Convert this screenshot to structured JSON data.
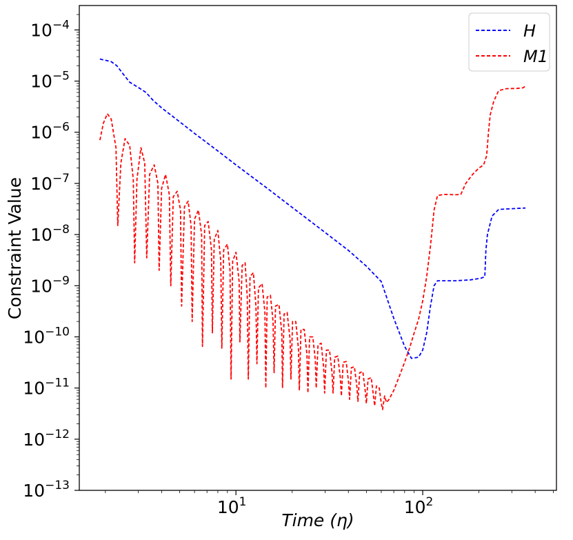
{
  "chart_data": {
    "type": "line",
    "title": "",
    "xlabel_parts": [
      "Time (",
      "η",
      ")"
    ],
    "ylabel": "Constraint Value",
    "xscale": "log",
    "yscale": "log",
    "xlim": [
      1.45,
      520
    ],
    "ylim": [
      1e-13,
      0.0003
    ],
    "x_ticks": [
      {
        "value": 10,
        "base": "10",
        "exp": "1"
      },
      {
        "value": 100,
        "base": "10",
        "exp": "2"
      }
    ],
    "y_ticks": [
      {
        "value": 1e-13,
        "base": "10",
        "exp": "−13"
      },
      {
        "value": 1e-12,
        "base": "10",
        "exp": "−12"
      },
      {
        "value": 1e-11,
        "base": "10",
        "exp": "−11"
      },
      {
        "value": 1e-10,
        "base": "10",
        "exp": "−10"
      },
      {
        "value": 1e-09,
        "base": "10",
        "exp": "−9"
      },
      {
        "value": 1e-08,
        "base": "10",
        "exp": "−8"
      },
      {
        "value": 1e-07,
        "base": "10",
        "exp": "−7"
      },
      {
        "value": 1e-06,
        "base": "10",
        "exp": "−6"
      },
      {
        "value": 1e-05,
        "base": "10",
        "exp": "−5"
      },
      {
        "value": 0.0001,
        "base": "10",
        "exp": "−4"
      }
    ],
    "legend_position": "top-right",
    "grid": false,
    "series": [
      {
        "name": "H",
        "color": "#0000ff",
        "linestyle": "dashed",
        "points": [
          [
            1.87,
            2.7e-05
          ],
          [
            2.0,
            2.55e-05
          ],
          [
            2.15,
            2.4e-05
          ],
          [
            2.3,
            2e-05
          ],
          [
            2.5,
            1.35e-05
          ],
          [
            2.7,
            9.5e-06
          ],
          [
            3.0,
            7.5e-06
          ],
          [
            3.3,
            6e-06
          ],
          [
            3.6,
            4.2e-06
          ],
          [
            4.0,
            3e-06
          ],
          [
            5.0,
            1.6e-06
          ],
          [
            6.0,
            9.5e-07
          ],
          [
            8.0,
            4.3e-07
          ],
          [
            10.0,
            2.3e-07
          ],
          [
            15.0,
            7.6e-08
          ],
          [
            20.0,
            3.4e-08
          ],
          [
            30.0,
            1.1e-08
          ],
          [
            40.0,
            4.9e-09
          ],
          [
            50.0,
            2.4e-09
          ],
          [
            60.0,
            1.2e-09
          ],
          [
            70.0,
            2.3e-10
          ],
          [
            80.0,
            6.5e-11
          ],
          [
            87.0,
            3.8e-11
          ],
          [
            95.0,
            4e-11
          ],
          [
            100.0,
            5.5e-11
          ],
          [
            105.0,
            1.2e-10
          ],
          [
            110.0,
            4e-10
          ],
          [
            115.0,
            1e-09
          ],
          [
            120.0,
            1.25e-09
          ],
          [
            150.0,
            1.25e-09
          ],
          [
            180.0,
            1.3e-09
          ],
          [
            205.0,
            1.4e-09
          ],
          [
            215.0,
            1.5e-09
          ],
          [
            218.0,
            5e-09
          ],
          [
            222.0,
            1e-08
          ],
          [
            235.0,
            2.3e-08
          ],
          [
            255.0,
            3.1e-08
          ],
          [
            300.0,
            3.2e-08
          ],
          [
            355.0,
            3.3e-08
          ]
        ]
      },
      {
        "name": "M1",
        "color": "#ff0000",
        "linestyle": "dashed",
        "points": [
          [
            1.87,
            7e-07
          ],
          [
            1.95,
            1.5e-06
          ],
          [
            2.05,
            2.3e-06
          ],
          [
            2.15,
            1.8e-06
          ],
          [
            2.28,
            5e-07
          ],
          [
            2.33,
            1.5e-08
          ],
          [
            2.42,
            2.5e-07
          ],
          [
            2.55,
            7.5e-07
          ],
          [
            2.7,
            5.5e-07
          ],
          [
            2.82,
            1.2e-07
          ],
          [
            2.87,
            2.8e-09
          ],
          [
            2.95,
            1.2e-07
          ],
          [
            3.1,
            5e-07
          ],
          [
            3.25,
            2.5e-07
          ],
          [
            3.33,
            3.5e-09
          ],
          [
            3.45,
            1.5e-07
          ],
          [
            3.65,
            2.3e-07
          ],
          [
            3.82,
            1e-07
          ],
          [
            3.88,
            2e-09
          ],
          [
            4.0,
            8e-08
          ],
          [
            4.2,
            1.5e-07
          ],
          [
            4.4,
            6e-08
          ],
          [
            4.48,
            1e-09
          ],
          [
            4.62,
            5.5e-08
          ],
          [
            4.85,
            7e-08
          ],
          [
            5.05,
            3e-08
          ],
          [
            5.12,
            4e-10
          ],
          [
            5.3,
            3.5e-08
          ],
          [
            5.55,
            4.5e-08
          ],
          [
            5.75,
            1.5e-08
          ],
          [
            5.83,
            2e-10
          ],
          [
            6.0,
            2e-08
          ],
          [
            6.3,
            3e-08
          ],
          [
            6.55,
            1e-08
          ],
          [
            6.62,
            6.5e-11
          ],
          [
            6.8,
            1.5e-08
          ],
          [
            7.1,
            1.8e-08
          ],
          [
            7.4,
            5e-09
          ],
          [
            7.48,
            1.2e-10
          ],
          [
            7.65,
            8e-09
          ],
          [
            8.0,
            1.2e-08
          ],
          [
            8.3,
            3e-09
          ],
          [
            8.4,
            6e-11
          ],
          [
            8.6,
            5e-09
          ],
          [
            9.0,
            6.5e-09
          ],
          [
            9.3,
            2e-09
          ],
          [
            9.42,
            1.5e-11
          ],
          [
            9.6,
            3e-09
          ],
          [
            10.0,
            4.5e-09
          ],
          [
            10.4,
            1.2e-09
          ],
          [
            10.5,
            8e-11
          ],
          [
            10.8,
            2.5e-09
          ],
          [
            11.2,
            2.8e-09
          ],
          [
            11.5,
            6e-10
          ],
          [
            11.65,
            1.5e-11
          ],
          [
            11.9,
            1.5e-09
          ],
          [
            12.4,
            1.8e-09
          ],
          [
            12.8,
            4e-10
          ],
          [
            12.95,
            3e-11
          ],
          [
            13.2,
            9e-10
          ],
          [
            13.8,
            1.1e-09
          ],
          [
            14.3,
            3e-10
          ],
          [
            14.45,
            1e-11
          ],
          [
            14.7,
            6e-10
          ],
          [
            15.3,
            6.5e-10
          ],
          [
            15.8,
            2e-10
          ],
          [
            16.0,
            2e-11
          ],
          [
            16.3,
            4e-10
          ],
          [
            17.0,
            4.3e-10
          ],
          [
            17.6,
            1.2e-10
          ],
          [
            17.75,
            1e-11
          ],
          [
            18.1,
            2.8e-10
          ],
          [
            18.8,
            3e-10
          ],
          [
            19.5,
            9e-11
          ],
          [
            19.7,
            1.5e-11
          ],
          [
            20.1,
            2e-10
          ],
          [
            20.9,
            2e-10
          ],
          [
            21.6,
            6e-11
          ],
          [
            21.85,
            9e-12
          ],
          [
            22.3,
            1.4e-10
          ],
          [
            23.2,
            1.4e-10
          ],
          [
            24.0,
            4.5e-11
          ],
          [
            24.3,
            8e-12
          ],
          [
            24.8,
            1e-10
          ],
          [
            25.8,
            1e-10
          ],
          [
            26.6,
            3.5e-11
          ],
          [
            26.9,
            1e-11
          ],
          [
            27.5,
            7e-11
          ],
          [
            28.6,
            7.5e-11
          ],
          [
            29.5,
            2.5e-11
          ],
          [
            29.85,
            8e-12
          ],
          [
            30.5,
            5.5e-11
          ],
          [
            31.7,
            5.5e-11
          ],
          [
            32.7,
            2e-11
          ],
          [
            33.1,
            8e-12
          ],
          [
            33.8,
            4e-11
          ],
          [
            35.1,
            4.2e-11
          ],
          [
            36.2,
            1.6e-11
          ],
          [
            36.7,
            7e-12
          ],
          [
            37.5,
            3.2e-11
          ],
          [
            38.9,
            3.3e-11
          ],
          [
            40.1,
            1.3e-11
          ],
          [
            40.6,
            6e-12
          ],
          [
            41.5,
            2.5e-11
          ],
          [
            43.1,
            2.6e-11
          ],
          [
            44.4,
            1.1e-11
          ],
          [
            45.0,
            5.5e-12
          ],
          [
            46.0,
            2e-11
          ],
          [
            47.8,
            2.1e-11
          ],
          [
            49.2,
            9e-12
          ],
          [
            49.9,
            5e-12
          ],
          [
            51.0,
            1.5e-11
          ],
          [
            53.0,
            1.6e-11
          ],
          [
            54.5,
            7e-12
          ],
          [
            55.3,
            4.5e-12
          ],
          [
            56.5,
            1.1e-11
          ],
          [
            58.5,
            1e-11
          ],
          [
            60.0,
            5e-12
          ],
          [
            61.0,
            3.8e-12
          ],
          [
            62.5,
            7e-12
          ],
          [
            64.0,
            5.2e-12
          ],
          [
            66.0,
            6e-12
          ],
          [
            70.0,
            9e-12
          ],
          [
            75.0,
            1.7e-11
          ],
          [
            80.0,
            3.2e-11
          ],
          [
            85.0,
            6e-11
          ],
          [
            90.0,
            1.2e-10
          ],
          [
            95.0,
            2.2e-10
          ],
          [
            100.0,
            5e-10
          ],
          [
            105.0,
            1.5e-09
          ],
          [
            110.0,
            6e-09
          ],
          [
            115.0,
            3e-08
          ],
          [
            120.0,
            5.8e-08
          ],
          [
            130.0,
            6.1e-08
          ],
          [
            150.0,
            6e-08
          ],
          [
            160.0,
            6.1e-08
          ],
          [
            170.0,
            1e-07
          ],
          [
            185.0,
            1.5e-07
          ],
          [
            200.0,
            2e-07
          ],
          [
            212.0,
            2.3e-07
          ],
          [
            220.0,
            3.5e-07
          ],
          [
            225.0,
            1e-06
          ],
          [
            230.0,
            2.2e-06
          ],
          [
            240.0,
            4e-06
          ],
          [
            255.0,
            6.5e-06
          ],
          [
            280.0,
            7.1e-06
          ],
          [
            320.0,
            7.2e-06
          ],
          [
            345.0,
            7.4e-06
          ],
          [
            355.0,
            8e-06
          ]
        ]
      }
    ]
  }
}
